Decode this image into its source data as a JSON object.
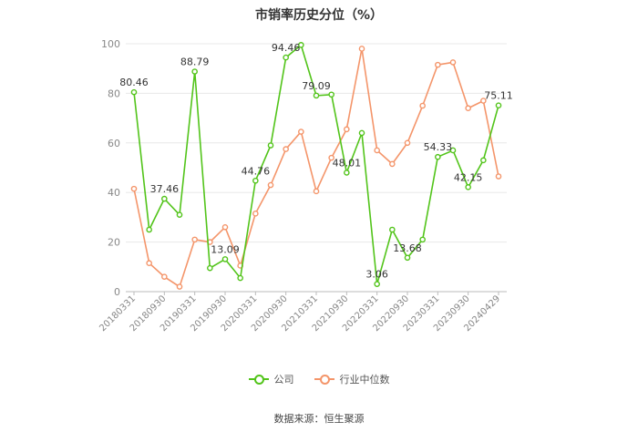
{
  "title": "市销率历史分位（%）",
  "source": "数据来源：恒生聚源",
  "chart_data": {
    "type": "line",
    "ylim": [
      0,
      100
    ],
    "yticks": [
      0,
      20,
      40,
      60,
      80,
      100
    ],
    "grid": true,
    "legend_position": "bottom",
    "x": [
      "20180331",
      "20180630",
      "20180930",
      "20181231",
      "20190331",
      "20190630",
      "20190930",
      "20191231",
      "20200331",
      "20200630",
      "20200930",
      "20201231",
      "20210331",
      "20210630",
      "20210930",
      "20211231",
      "20220331",
      "20220630",
      "20220930",
      "20221231",
      "20230331",
      "20230630",
      "20230930",
      "20231231",
      "20240429"
    ],
    "x_tick_labels": [
      "20180331",
      "20180930",
      "20190331",
      "20190930",
      "20200331",
      "20200930",
      "20210331",
      "20210930",
      "20220331",
      "20220930",
      "20230331",
      "20230930",
      "20240429"
    ],
    "series": [
      {
        "name": "公司",
        "color": "#52c41a",
        "values": [
          80.46,
          25,
          37.46,
          31,
          88.79,
          9.5,
          13.09,
          5.5,
          44.76,
          59,
          94.46,
          99.5,
          79.09,
          79.5,
          48.01,
          64,
          3.06,
          25,
          13.68,
          21,
          54.33,
          57,
          42.15,
          53,
          75.11
        ],
        "data_labels": [
          {
            "index": 0,
            "text": "80.46"
          },
          {
            "index": 2,
            "text": "37.46"
          },
          {
            "index": 4,
            "text": "88.79"
          },
          {
            "index": 6,
            "text": "13.09"
          },
          {
            "index": 8,
            "text": "44.76"
          },
          {
            "index": 10,
            "text": "94.46"
          },
          {
            "index": 12,
            "text": "79.09"
          },
          {
            "index": 14,
            "text": "48.01"
          },
          {
            "index": 16,
            "text": "3.06"
          },
          {
            "index": 18,
            "text": "13.68"
          },
          {
            "index": 20,
            "text": "54.33"
          },
          {
            "index": 22,
            "text": "42.15"
          },
          {
            "index": 24,
            "text": "75.11"
          }
        ]
      },
      {
        "name": "行业中位数",
        "color": "#f4956a",
        "values": [
          41.5,
          11.5,
          6,
          2,
          21,
          20,
          26,
          10.5,
          31.5,
          43,
          57.5,
          64.5,
          40.5,
          54,
          65.5,
          98,
          57,
          51.5,
          60,
          75,
          91.5,
          92.5,
          74,
          77,
          46.5
        ],
        "data_labels": []
      }
    ]
  }
}
